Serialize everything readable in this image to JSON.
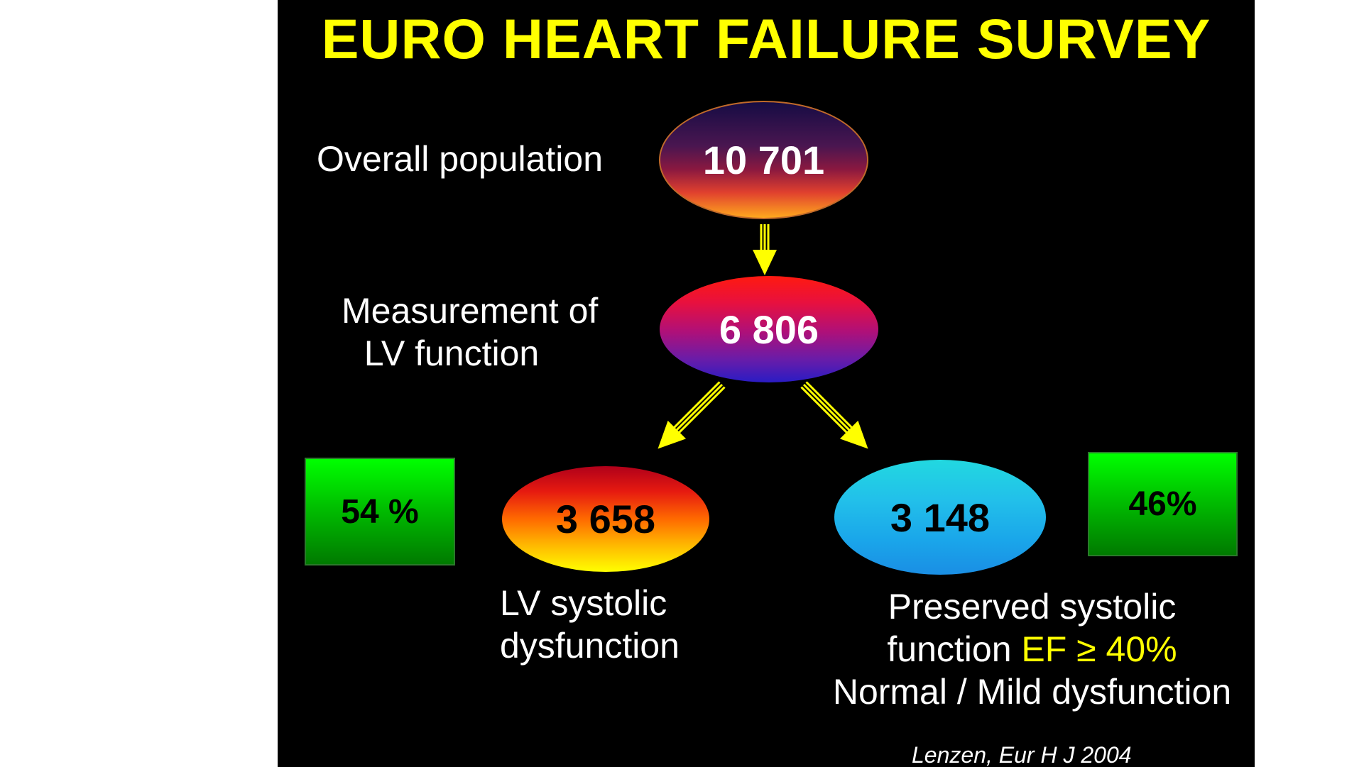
{
  "title": "EURO HEART FAILURE SURVEY",
  "nodes": {
    "overall": {
      "label": "Overall population",
      "value": "10 701"
    },
    "lv_measurement": {
      "label_line1": "Measurement of",
      "label_line2": "LV function",
      "value": "6 806"
    },
    "systolic": {
      "label_line1": "LV systolic",
      "label_line2": "dysfunction",
      "value": "3 658",
      "percent": "54 %"
    },
    "preserved": {
      "label_line1": "Preserved systolic",
      "label_line2_prefix": "function ",
      "label_line2_highlight": "EF ≥ 40%",
      "label_line3": "Normal / Mild dysfunction",
      "value": "3 148",
      "percent": "46%"
    }
  },
  "citation": "Lenzen, Eur H J 2004",
  "colors": {
    "background": "#000000",
    "title": "#ffff00",
    "arrow": "#ffff00",
    "highlight": "#ffff00",
    "percent_box": "#00c000"
  }
}
